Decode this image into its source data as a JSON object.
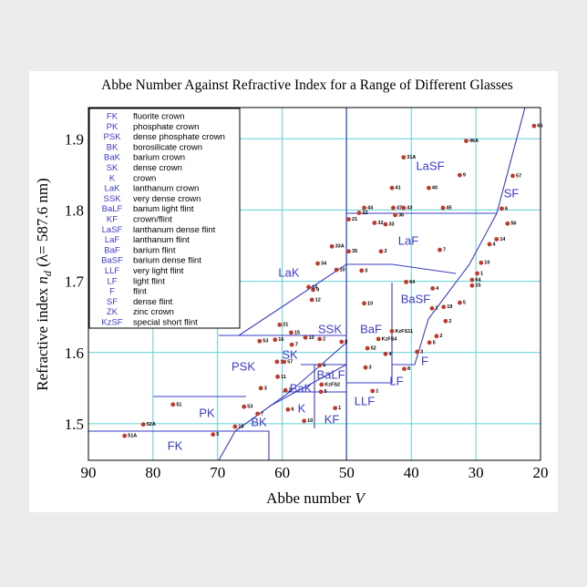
{
  "chart_data": {
    "type": "scatter",
    "title": "Abbe Number Against Refractive Index for a Range of Different Glasses",
    "x_label": {
      "text": "Abbe number ",
      "symbol": "V"
    },
    "y_label": {
      "prefix": "Refractive index ",
      "symbol": "n",
      "subscript": "d",
      "suffix": " (λ= 587.6 nm)"
    },
    "xlim": [
      90,
      20
    ],
    "xticks": [
      90,
      80,
      70,
      60,
      50,
      40,
      30,
      20
    ],
    "ylim": [
      1.45,
      1.94
    ],
    "yticks": [
      1.5,
      1.6,
      1.7,
      1.8,
      1.9
    ],
    "grid": true,
    "grid_color": "#5fd0d6",
    "point_color": "#c0392b",
    "region_color": "#3b3bc4",
    "points": {
      "x": [
        84.4,
        81.5,
        76.9,
        70.7,
        67.3,
        65.9,
        63.8,
        63.3,
        63.5,
        61.1,
        60.8,
        59.7,
        60.7,
        59.5,
        59.1,
        56.6,
        58.6,
        58.5,
        56.4,
        54.2,
        50.8,
        55.2,
        55.9,
        55.4,
        60.4,
        54.5,
        51.6,
        47.7,
        52.3,
        49.7,
        44.7,
        48.1,
        45.7,
        44.0,
        49.7,
        42.5,
        47.3,
        42.8,
        41.2,
        35.1,
        43.0,
        37.3,
        41.2,
        31.5,
        32.5,
        21.0,
        24.3,
        26.0,
        25.1,
        26.8,
        27.9,
        35.6,
        29.2,
        29.8,
        30.6,
        30.6,
        32.5,
        35.0,
        34.7,
        40.8,
        36.7,
        47.3,
        36.8,
        43.0,
        45.1,
        46.8,
        44.0,
        36.1,
        37.2,
        39.1,
        41.1,
        47.1,
        46.0,
        53.9,
        54.0,
        51.8,
        54.2
      ],
      "values": [
        1.483,
        1.499,
        1.527,
        1.485,
        1.496,
        1.524,
        1.514,
        1.55,
        1.616,
        1.618,
        1.587,
        1.587,
        1.566,
        1.547,
        1.52,
        1.504,
        1.628,
        1.611,
        1.621,
        1.619,
        1.615,
        1.688,
        1.692,
        1.674,
        1.639,
        1.725,
        1.716,
        1.715,
        1.749,
        1.742,
        1.742,
        1.796,
        1.782,
        1.78,
        1.787,
        1.793,
        1.803,
        1.803,
        1.803,
        1.803,
        1.831,
        1.831,
        1.874,
        1.897,
        1.849,
        1.918,
        1.848,
        1.802,
        1.781,
        1.759,
        1.752,
        1.744,
        1.726,
        1.711,
        1.702,
        1.694,
        1.67,
        1.664,
        1.644,
        1.699,
        1.69,
        1.669,
        1.662,
        1.63,
        1.619,
        1.606,
        1.598,
        1.623,
        1.614,
        1.601,
        1.577,
        1.579,
        1.546,
        1.555,
        1.545,
        1.522,
        1.582
      ],
      "labels": [
        "51A",
        "52A",
        "51",
        "5",
        "18",
        "53",
        "7",
        "3",
        "53",
        "16",
        "1",
        "57",
        "11",
        "2",
        "6",
        "10",
        "15",
        "7",
        "10",
        "2",
        "8",
        "9",
        "14",
        "12",
        "21",
        "34",
        "10",
        "3",
        "33A",
        "35",
        "2",
        "22",
        "32",
        "33",
        "21",
        "36",
        "44",
        "47",
        "43",
        "45",
        "41",
        "40",
        "31A",
        "46A",
        "9",
        "66",
        "57",
        "6",
        "56",
        "14",
        "4",
        "7",
        "10",
        "1",
        "64",
        "15",
        "5",
        "19",
        "2",
        "64",
        "4",
        "10",
        "2",
        "KzFS11",
        "KzFS4",
        "52",
        "4",
        "2",
        "5",
        "3",
        "8",
        "3",
        "1",
        "KzFS2",
        "5",
        "1",
        "4"
      ]
    },
    "glass_types": [
      {
        "code": "FK",
        "name": "fluorite crown"
      },
      {
        "code": "PK",
        "name": "phosphate crown"
      },
      {
        "code": "PSK",
        "name": "dense phosphate crown"
      },
      {
        "code": "BK",
        "name": "borosilicate crown"
      },
      {
        "code": "BaK",
        "name": "barium crown"
      },
      {
        "code": "SK",
        "name": "dense crown"
      },
      {
        "code": "K",
        "name": "crown"
      },
      {
        "code": "LaK",
        "name": "lanthanum crown"
      },
      {
        "code": "SSK",
        "name": "very dense crown"
      },
      {
        "code": "BaLF",
        "name": "barium light flint"
      },
      {
        "code": "KF",
        "name": "crown/flint"
      },
      {
        "code": "LaSF",
        "name": "lanthanum dense flint"
      },
      {
        "code": "LaF",
        "name": "lanthanum flint"
      },
      {
        "code": "BaF",
        "name": "barium flint"
      },
      {
        "code": "BaSF",
        "name": "barium dense flint"
      },
      {
        "code": "LLF",
        "name": "very light flint"
      },
      {
        "code": "LF",
        "name": "light flint"
      },
      {
        "code": "F",
        "name": "flint"
      },
      {
        "code": "SF",
        "name": "dense flint"
      },
      {
        "code": "ZK",
        "name": "zinc crown"
      },
      {
        "code": "KzSF",
        "name": "special short flint"
      }
    ],
    "region_labels": [
      "LaSF",
      "SF",
      "LaF",
      "LaK",
      "BaSF",
      "SSK",
      "BaF",
      "SK",
      "PSK",
      "BaLF",
      "BaK",
      "LF",
      "F",
      "K",
      "LLF",
      "KF",
      "PK",
      "BK",
      "FK"
    ]
  }
}
